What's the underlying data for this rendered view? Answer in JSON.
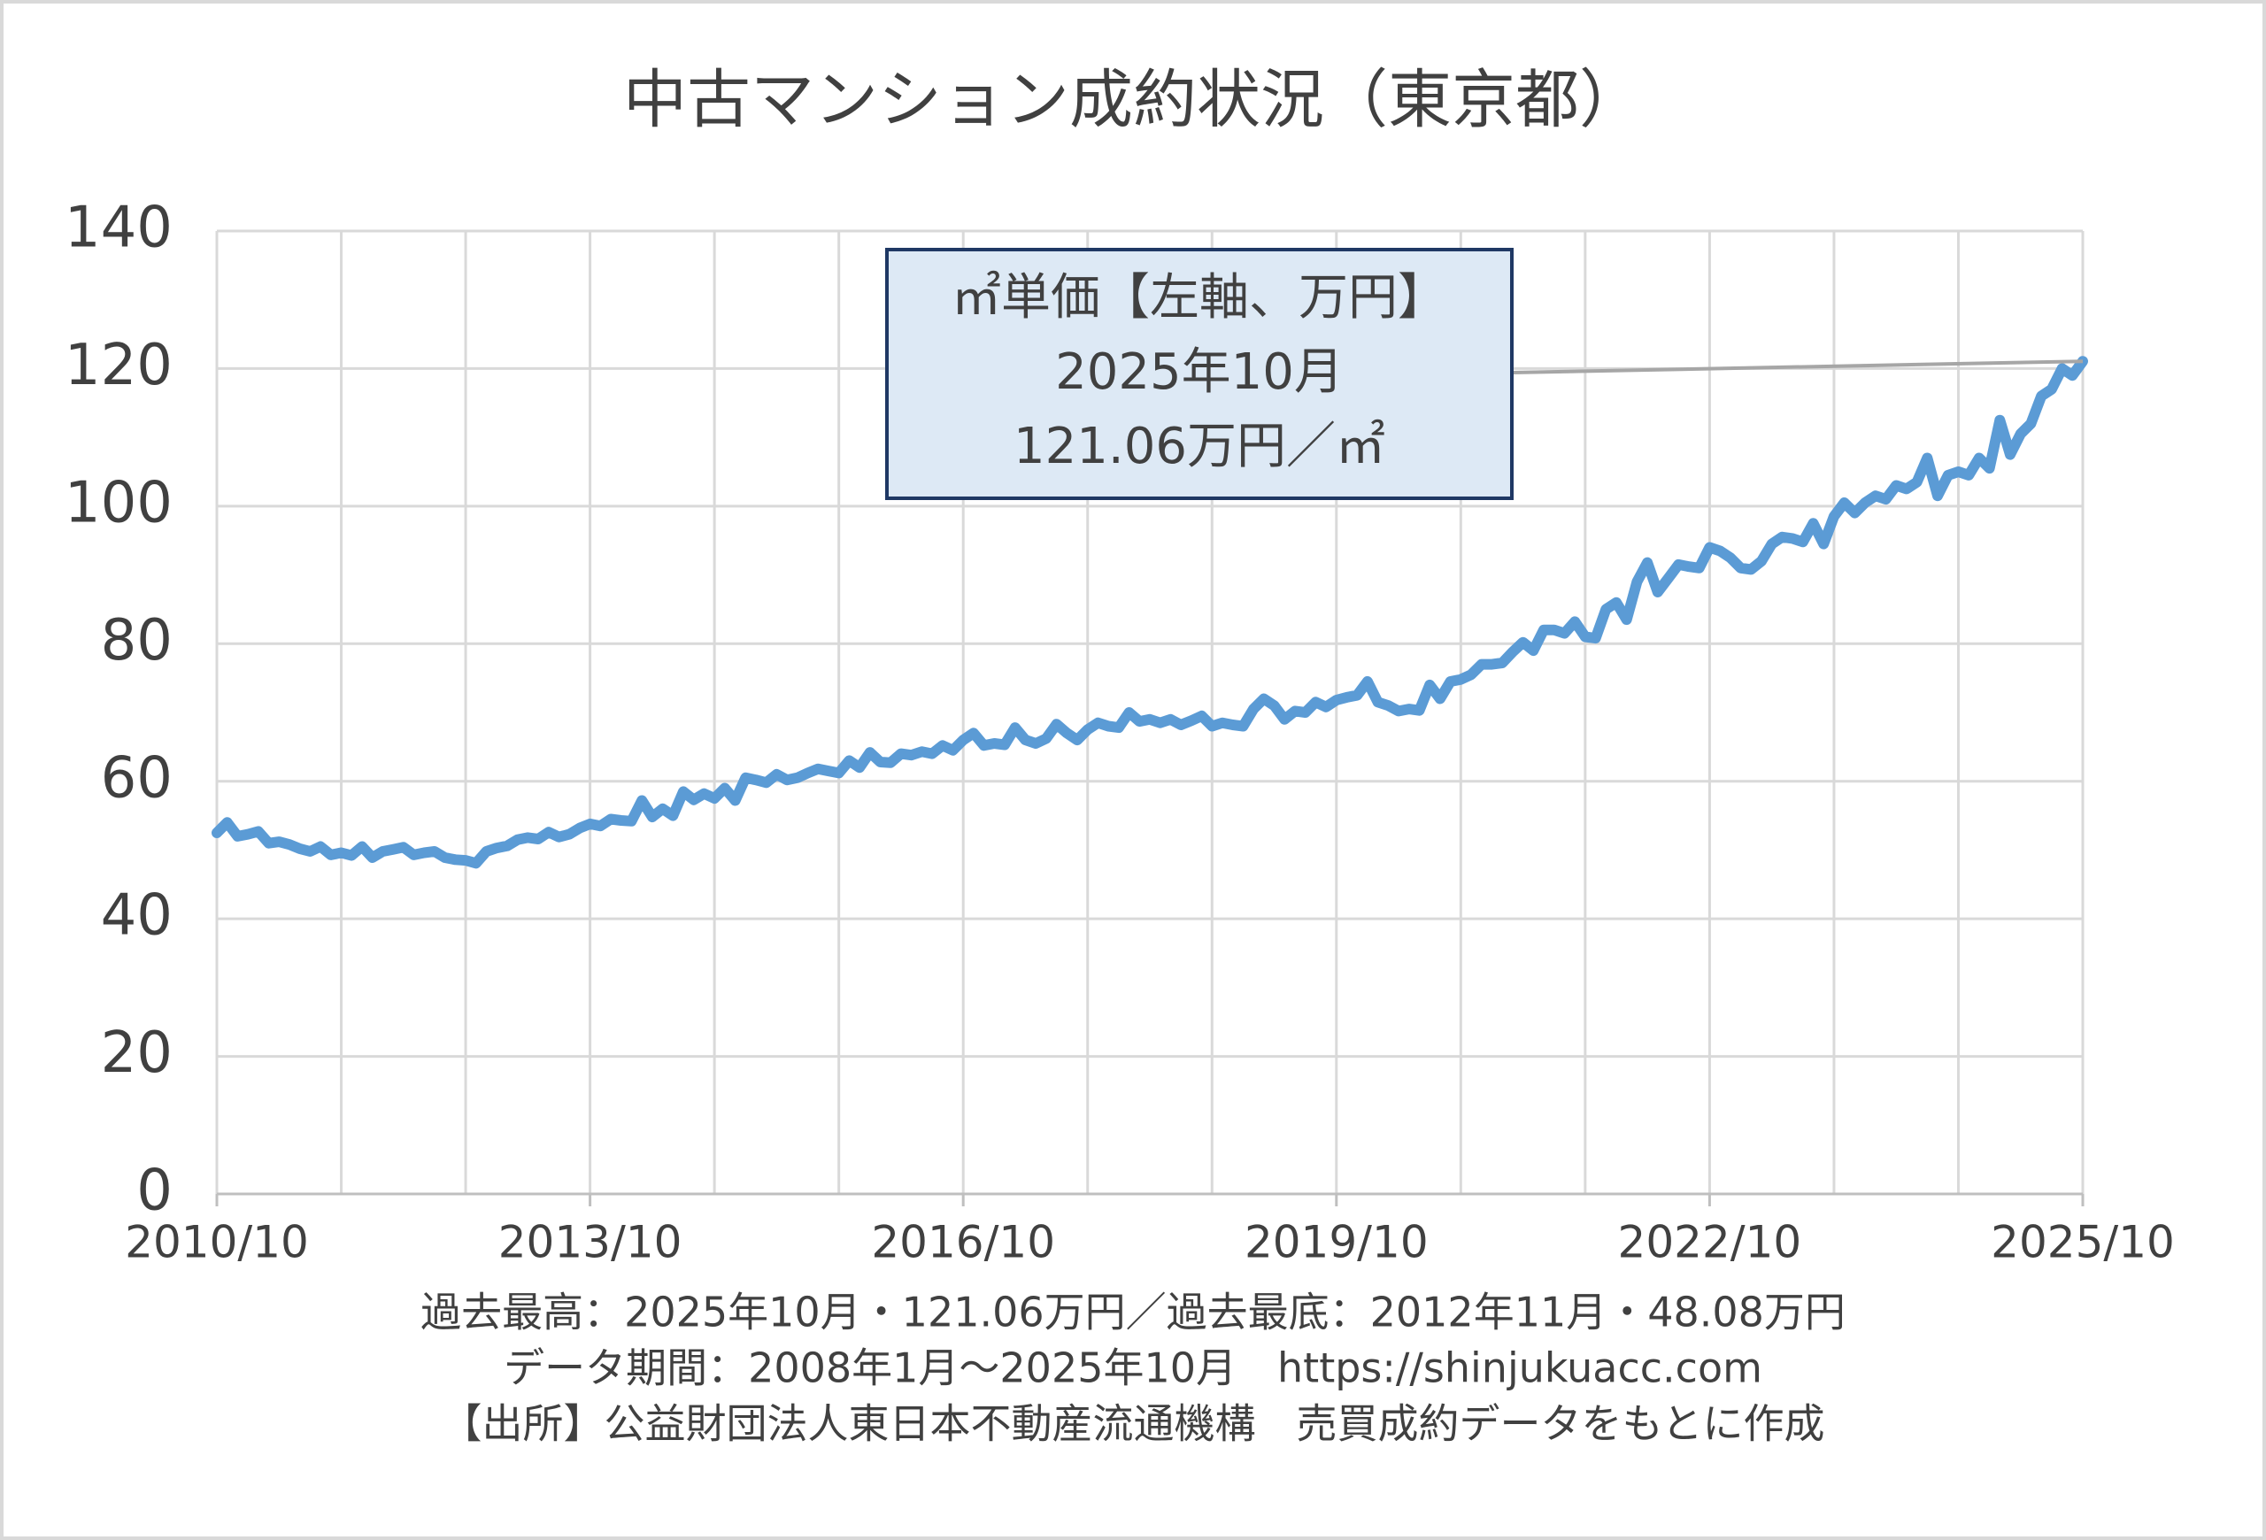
{
  "chart_data": {
    "type": "line",
    "title": "中古マンション成約状況（東京都）",
    "categories": [
      "2010/10",
      null,
      null,
      null,
      null,
      null,
      null,
      null,
      null,
      null,
      null,
      null,
      null,
      null,
      null,
      null,
      null,
      null,
      null,
      null,
      null,
      null,
      null,
      null,
      null,
      null,
      null,
      null,
      null,
      null,
      null,
      null,
      null,
      null,
      null,
      null,
      "2013/10",
      null,
      null,
      null,
      null,
      null,
      null,
      null,
      null,
      null,
      null,
      null,
      null,
      null,
      null,
      null,
      null,
      null,
      null,
      null,
      null,
      null,
      null,
      null,
      null,
      null,
      null,
      null,
      null,
      null,
      null,
      null,
      null,
      null,
      null,
      null,
      "2016/10",
      null,
      null,
      null,
      null,
      null,
      null,
      null,
      null,
      null,
      null,
      null,
      null,
      null,
      null,
      null,
      null,
      null,
      null,
      null,
      null,
      null,
      null,
      null,
      null,
      null,
      null,
      null,
      null,
      null,
      null,
      null,
      null,
      null,
      null,
      null,
      "2019/10",
      null,
      null,
      null,
      null,
      null,
      null,
      null,
      null,
      null,
      null,
      null,
      null,
      null,
      null,
      null,
      null,
      null,
      null,
      null,
      null,
      null,
      null,
      null,
      null,
      null,
      null,
      null,
      null,
      null,
      null,
      null,
      null,
      null,
      null,
      null,
      "2022/10",
      null,
      null,
      null,
      null,
      null,
      null,
      null,
      null,
      null,
      null,
      null,
      null,
      null,
      null,
      null,
      null,
      null,
      null,
      null,
      null,
      null,
      null,
      null,
      null,
      null,
      null,
      null,
      null,
      null,
      null,
      null,
      null,
      null,
      null,
      null,
      "2025/10"
    ],
    "series": [
      {
        "color": "#5b9bd5",
        "values": [
          52.5,
          54,
          52,
          52.3,
          52.7,
          51,
          51.2,
          50.8,
          50.2,
          49.8,
          50.5,
          49.3,
          49.6,
          49.2,
          50.5,
          48.9,
          49.8,
          50.1,
          50.4,
          49.3,
          49.6,
          49.8,
          48.9,
          48.6,
          48.5,
          48.08,
          49.8,
          50.3,
          50.6,
          51.5,
          51.8,
          51.6,
          52.6,
          51.9,
          52.3,
          53.2,
          53.8,
          53.5,
          54.5,
          54.3,
          54.2,
          57.2,
          54.8,
          56.0,
          55.0,
          58.5,
          57.3,
          58.2,
          57.5,
          59.0,
          57.2,
          60.5,
          60.2,
          59.8,
          61.0,
          60.2,
          60.5,
          61.2,
          61.8,
          61.5,
          61.2,
          63.0,
          62.0,
          64.2,
          62.8,
          62.7,
          64.0,
          63.8,
          64.3,
          64.0,
          65.2,
          64.5,
          66.0,
          67.0,
          65.2,
          65.5,
          65.3,
          67.8,
          66.0,
          65.5,
          66.2,
          68.3,
          67.0,
          66.0,
          67.5,
          68.5,
          68.0,
          67.8,
          70.0,
          68.7,
          69.0,
          68.5,
          69.0,
          68.2,
          68.8,
          69.5,
          68.0,
          68.5,
          68.2,
          68.0,
          70.5,
          72.0,
          71.0,
          69.0,
          70.2,
          70.0,
          71.5,
          70.8,
          71.8,
          72.2,
          72.5,
          74.5,
          71.5,
          71.0,
          70.2,
          70.5,
          70.3,
          74.0,
          72.0,
          74.5,
          74.8,
          75.5,
          77.0,
          77.0,
          77.2,
          78.8,
          80.2,
          79.0,
          82.0,
          82.0,
          81.5,
          83.2,
          81.0,
          80.8,
          85.0,
          86.0,
          83.5,
          89.0,
          91.8,
          87.5,
          89.5,
          91.5,
          91.2,
          91.0,
          94.0,
          93.5,
          92.5,
          91.0,
          90.8,
          92.0,
          94.5,
          95.5,
          95.3,
          94.8,
          97.5,
          94.5,
          98.5,
          100.5,
          99.0,
          100.5,
          101.5,
          101.0,
          103.0,
          102.5,
          103.5,
          107.0,
          101.5,
          104.5,
          105.0,
          104.5,
          107.0,
          105.5,
          112.5,
          107.5,
          110.5,
          112.0,
          116.0,
          117.0,
          120.0,
          119.0,
          121.06
        ]
      }
    ],
    "ylim": [
      0,
      140
    ],
    "yticks": [
      0,
      20,
      40,
      60,
      80,
      100,
      120,
      140
    ],
    "grid": true,
    "annotation": [
      "㎡単価【左軸、万円】",
      "2025年10月",
      "121.06万円／㎡"
    ],
    "notes": [
      "過去最高：2025年10月・121.06万円／過去最底：2012年11月・48.08万円",
      "データ期間：2008年1月～2025年10月　https://shinjukuacc.com",
      "【出所】公益財団法人東日本不動産流通機構　売買成約データをもとに作成"
    ]
  }
}
